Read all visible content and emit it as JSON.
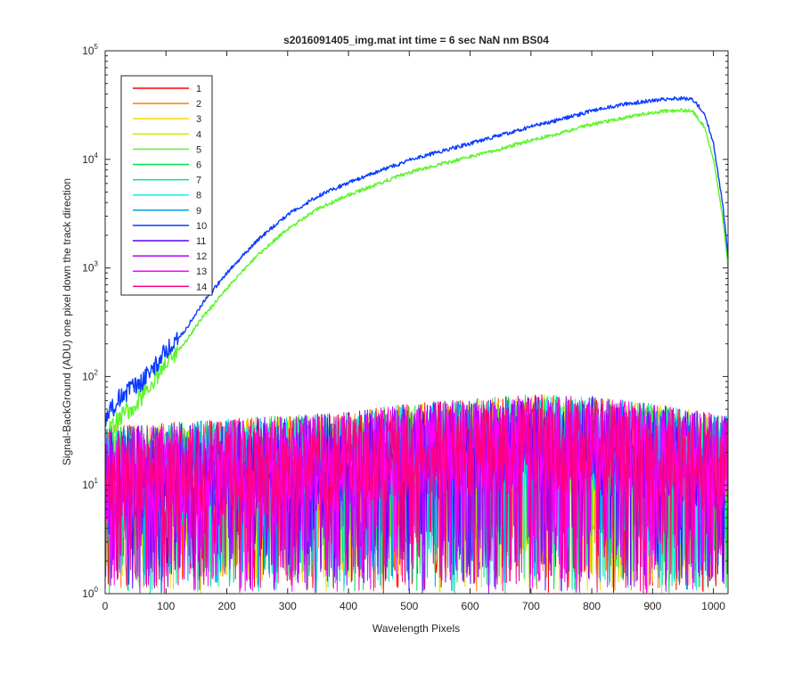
{
  "chart_data": {
    "type": "line",
    "title": "s2016091405_img.mat int time = 6 sec  NaN nm BS04",
    "xlabel": "Wavelength Pixels",
    "ylabel": "Signal-BackGround (ADU) one pixel down the track direction",
    "xlim": [
      0,
      1024
    ],
    "ylim": [
      1,
      100000
    ],
    "yscale": "log",
    "x_ticks": [
      "0",
      "100",
      "200",
      "300",
      "400",
      "500",
      "600",
      "700",
      "800",
      "900",
      "1000"
    ],
    "y_ticks": [
      {
        "base": "10",
        "exp": "0"
      },
      {
        "base": "10",
        "exp": "1"
      },
      {
        "base": "10",
        "exp": "2"
      },
      {
        "base": "10",
        "exp": "3"
      },
      {
        "base": "10",
        "exp": "4"
      },
      {
        "base": "10",
        "exp": "5"
      }
    ],
    "grid": false,
    "legend_position": "top-left",
    "x_points": 1024,
    "noise_profile": {
      "x": [
        0,
        100,
        200,
        300,
        400,
        500,
        600,
        700,
        800,
        900,
        1024
      ],
      "median": [
        11,
        12,
        13,
        14,
        15,
        18,
        20,
        22,
        21,
        18,
        14
      ],
      "peak": [
        45,
        50,
        55,
        60,
        65,
        85,
        90,
        100,
        95,
        80,
        60
      ]
    },
    "series": [
      {
        "name": "1",
        "color": "#ff0000",
        "kind": "noise"
      },
      {
        "name": "2",
        "color": "#ff7f00",
        "kind": "noise"
      },
      {
        "name": "3",
        "color": "#ffd700",
        "kind": "noise"
      },
      {
        "name": "4",
        "color": "#c8f000",
        "kind": "noise"
      },
      {
        "name": "5",
        "color": "#5ef52a",
        "kind": "signal",
        "points": [
          [
            0,
            30
          ],
          [
            20,
            40
          ],
          [
            40,
            50
          ],
          [
            60,
            65
          ],
          [
            80,
            90
          ],
          [
            100,
            130
          ],
          [
            130,
            200
          ],
          [
            160,
            350
          ],
          [
            200,
            650
          ],
          [
            250,
            1300
          ],
          [
            300,
            2300
          ],
          [
            350,
            3500
          ],
          [
            400,
            4700
          ],
          [
            450,
            6000
          ],
          [
            500,
            7600
          ],
          [
            550,
            9000
          ],
          [
            600,
            10500
          ],
          [
            650,
            12500
          ],
          [
            700,
            15000
          ],
          [
            750,
            17500
          ],
          [
            800,
            21000
          ],
          [
            850,
            24000
          ],
          [
            900,
            27000
          ],
          [
            940,
            28500
          ],
          [
            965,
            28000
          ],
          [
            985,
            20000
          ],
          [
            1000,
            10000
          ],
          [
            1015,
            3000
          ],
          [
            1024,
            1000
          ]
        ]
      },
      {
        "name": "6",
        "color": "#00e050",
        "kind": "noise"
      },
      {
        "name": "7",
        "color": "#00e0a0",
        "kind": "noise"
      },
      {
        "name": "8",
        "color": "#20e8e8",
        "kind": "noise"
      },
      {
        "name": "9",
        "color": "#00a0f0",
        "kind": "noise"
      },
      {
        "name": "10",
        "color": "#0a3cff",
        "kind": "signal",
        "points": [
          [
            0,
            40
          ],
          [
            20,
            60
          ],
          [
            40,
            75
          ],
          [
            60,
            90
          ],
          [
            80,
            120
          ],
          [
            100,
            170
          ],
          [
            130,
            260
          ],
          [
            160,
            470
          ],
          [
            200,
            900
          ],
          [
            250,
            1800
          ],
          [
            300,
            3100
          ],
          [
            350,
            4600
          ],
          [
            400,
            6100
          ],
          [
            450,
            7800
          ],
          [
            500,
            9800
          ],
          [
            550,
            11800
          ],
          [
            600,
            14000
          ],
          [
            650,
            16800
          ],
          [
            700,
            20000
          ],
          [
            750,
            23500
          ],
          [
            800,
            28000
          ],
          [
            850,
            32000
          ],
          [
            900,
            35000
          ],
          [
            940,
            36500
          ],
          [
            965,
            36000
          ],
          [
            985,
            27000
          ],
          [
            1000,
            14000
          ],
          [
            1015,
            4000
          ],
          [
            1024,
            1300
          ]
        ]
      },
      {
        "name": "11",
        "color": "#5a00ff",
        "kind": "noise"
      },
      {
        "name": "12",
        "color": "#b400ff",
        "kind": "noise"
      },
      {
        "name": "13",
        "color": "#ff00ff",
        "kind": "noise"
      },
      {
        "name": "14",
        "color": "#ff0080",
        "kind": "noise"
      }
    ]
  }
}
